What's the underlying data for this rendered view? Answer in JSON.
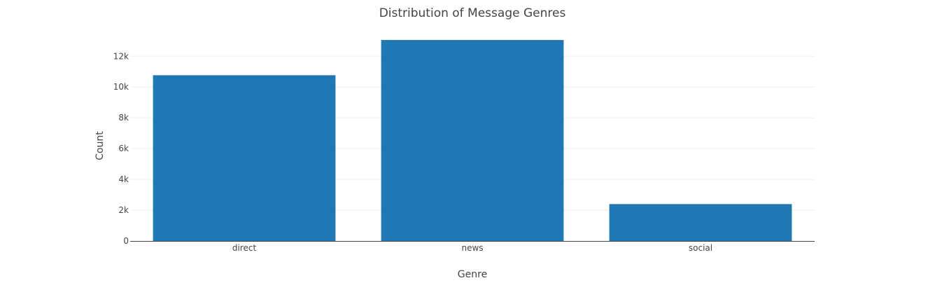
{
  "chart_data": {
    "type": "bar",
    "title": "Distribution of Message Genres",
    "xlabel": "Genre",
    "ylabel": "Count",
    "categories": [
      "direct",
      "news",
      "social"
    ],
    "values": [
      10766,
      13054,
      2396
    ],
    "ylim": [
      0,
      13741
    ],
    "yticks": [
      0,
      2000,
      4000,
      6000,
      8000,
      10000,
      12000
    ],
    "ytick_labels": [
      "0",
      "2k",
      "4k",
      "6k",
      "8k",
      "10k",
      "12k"
    ],
    "grid": "horizontal",
    "legend": "none",
    "bar_color": "#1f77b4"
  }
}
